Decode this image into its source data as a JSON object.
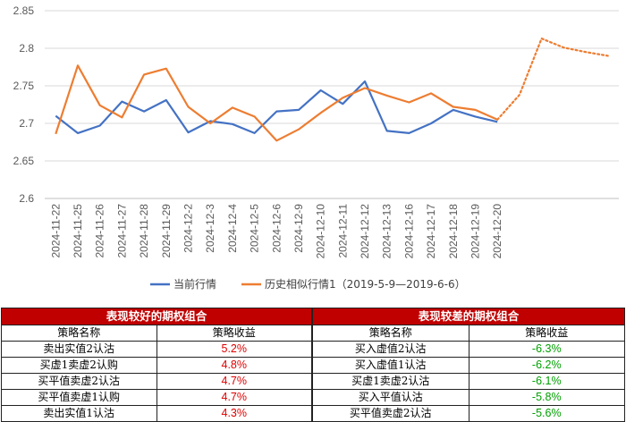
{
  "chart_data": {
    "type": "line",
    "ylim": [
      2.6,
      2.85
    ],
    "yticks": [
      "2.6",
      "2.65",
      "2.7",
      "2.75",
      "2.8",
      "2.85"
    ],
    "categories": [
      "2024-11-22",
      "2024-11-25",
      "2024-11-26",
      "2024-11-27",
      "2024-11-28",
      "2024-11-29",
      "2024-12-2",
      "2024-12-3",
      "2024-12-4",
      "2024-12-5",
      "2024-12-6",
      "2024-12-9",
      "2024-12-10",
      "2024-12-11",
      "2024-12-12",
      "2024-12-13",
      "2024-12-16",
      "2024-12-17",
      "2024-12-18",
      "2024-12-19",
      "2024-12-20"
    ],
    "series": [
      {
        "name": "当前行情",
        "color": "#4472c4",
        "values": [
          2.71,
          2.687,
          2.697,
          2.729,
          2.716,
          2.731,
          2.688,
          2.703,
          2.699,
          2.687,
          2.716,
          2.718,
          2.744,
          2.726,
          2.756,
          2.69,
          2.687,
          2.7,
          2.718,
          2.709,
          2.702
        ]
      },
      {
        "name": "历史相似行情1（2019-5-9—2019-6-6）",
        "color": "#ed7d31",
        "values": [
          2.686,
          2.777,
          2.724,
          2.708,
          2.765,
          2.773,
          2.722,
          2.7,
          2.721,
          2.709,
          2.677,
          2.692,
          2.714,
          2.734,
          2.747,
          2.737,
          2.728,
          2.74,
          2.722,
          2.718,
          2.705
        ],
        "projection": [
          2.705,
          2.738,
          2.813,
          2.801,
          2.795,
          2.79
        ]
      }
    ],
    "grid": "horizontal",
    "legend_position": "bottom"
  },
  "tables": {
    "left": {
      "title": "表现较好的期权组合",
      "col1": "策略名称",
      "col2": "策略收益",
      "rows": [
        {
          "name": "卖出实值2认沽",
          "value": "5.2%"
        },
        {
          "name": "买虚1卖虚2认购",
          "value": "4.8%"
        },
        {
          "name": "买平值卖虚2认沽",
          "value": "4.7%"
        },
        {
          "name": "买平值卖虚1认购",
          "value": "4.7%"
        },
        {
          "name": "卖出实值1认沽",
          "value": "4.3%"
        }
      ]
    },
    "right": {
      "title": "表现较差的期权组合",
      "col1": "策略名称",
      "col2": "策略收益",
      "rows": [
        {
          "name": "买入虚值2认沽",
          "value": "-6.3%"
        },
        {
          "name": "买入虚值1认沽",
          "value": "-6.2%"
        },
        {
          "name": "买虚1卖虚2认沽",
          "value": "-6.1%"
        },
        {
          "name": "买入平值认沽",
          "value": "-5.8%"
        },
        {
          "name": "买平值卖虚2认沽",
          "value": "-5.6%"
        }
      ]
    }
  }
}
